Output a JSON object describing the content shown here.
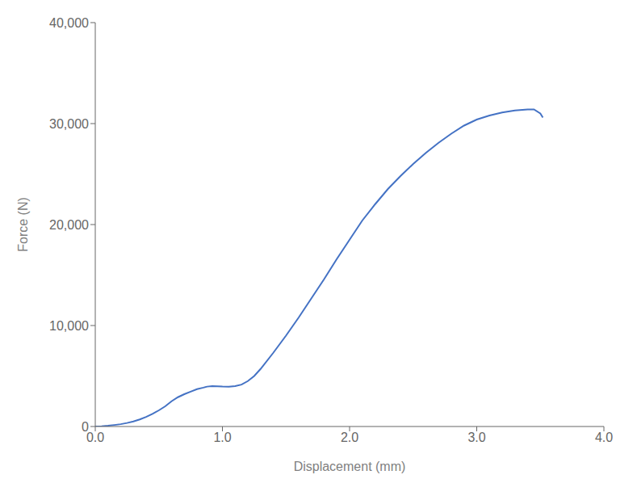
{
  "chart_data": {
    "type": "line",
    "xlabel": "Displacement (mm)",
    "ylabel": "Force (N)",
    "x": [
      0.0,
      0.05,
      0.1,
      0.15,
      0.2,
      0.25,
      0.3,
      0.35,
      0.4,
      0.45,
      0.5,
      0.55,
      0.6,
      0.65,
      0.7,
      0.75,
      0.8,
      0.85,
      0.88,
      0.92,
      0.96,
      1.0,
      1.05,
      1.1,
      1.15,
      1.2,
      1.25,
      1.3,
      1.4,
      1.5,
      1.6,
      1.7,
      1.8,
      1.9,
      2.0,
      2.1,
      2.2,
      2.3,
      2.4,
      2.5,
      2.6,
      2.7,
      2.8,
      2.9,
      3.0,
      3.1,
      3.2,
      3.3,
      3.4,
      3.45,
      3.5,
      3.52
    ],
    "values": [
      0,
      30,
      80,
      150,
      230,
      350,
      500,
      700,
      950,
      1250,
      1600,
      2000,
      2500,
      2900,
      3200,
      3450,
      3700,
      3850,
      3950,
      4000,
      3980,
      3960,
      3950,
      4000,
      4150,
      4500,
      5000,
      5700,
      7300,
      9000,
      10800,
      12700,
      14600,
      16600,
      18500,
      20400,
      22000,
      23500,
      24800,
      26000,
      27100,
      28100,
      29000,
      29800,
      30400,
      30800,
      31100,
      31300,
      31400,
      31400,
      31000,
      30600
    ],
    "color": "#4472C4",
    "xlim": [
      0.0,
      4.0
    ],
    "ylim": [
      0,
      40000
    ],
    "xticks": [
      {
        "value": 0,
        "label": "0.0"
      },
      {
        "value": 1,
        "label": "1.0"
      },
      {
        "value": 2,
        "label": "2.0"
      },
      {
        "value": 3,
        "label": "3.0"
      },
      {
        "value": 4,
        "label": "4.0"
      }
    ],
    "yticks": [
      0,
      {
        "value": 10000,
        "label": "10,000"
      },
      {
        "value": 20000,
        "label": "20,000"
      },
      {
        "value": 30000,
        "label": "30,000"
      },
      {
        "value": 40000,
        "label": "40,000"
      }
    ],
    "grid": false
  }
}
